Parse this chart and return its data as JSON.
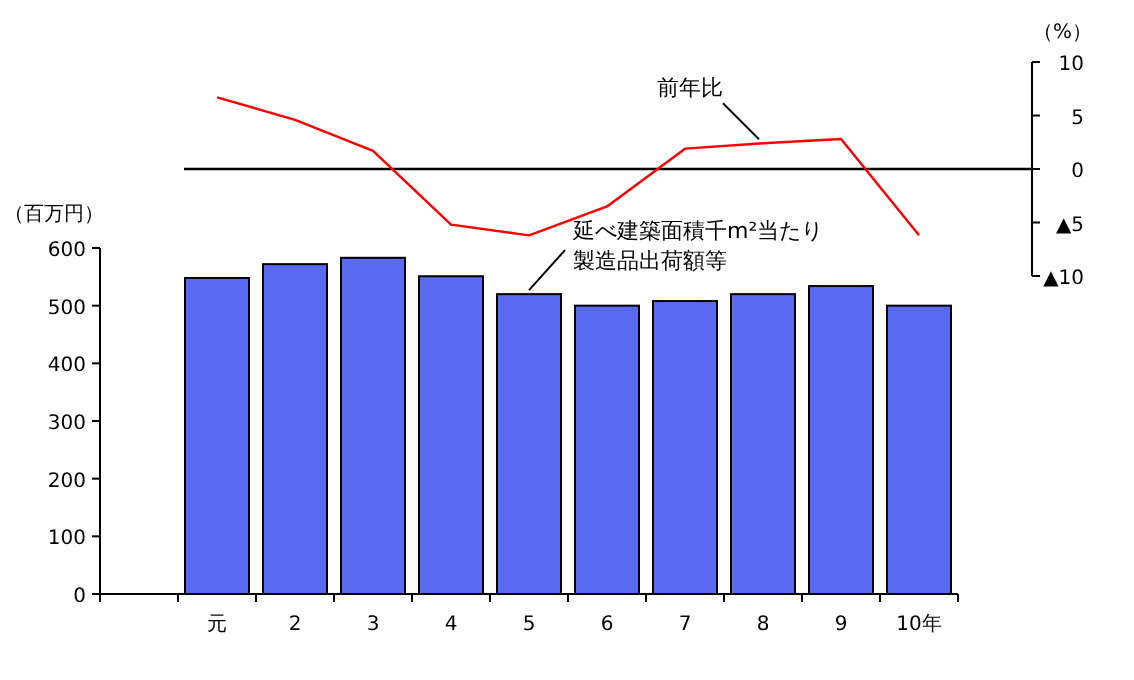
{
  "chart_data": [
    {
      "type": "line",
      "ylabel": "（%）",
      "categories": [
        null,
        null,
        null,
        null,
        null,
        null,
        null,
        null,
        null,
        null,
        null
      ],
      "tick_labels": "y",
      "ylim": [
        -10,
        10
      ],
      "yticks": [
        {
          "value": -10,
          "label": "▲10"
        },
        {
          "value": -5,
          "label": "▲5"
        },
        0,
        5,
        10
      ],
      "ref_lines": [
        {
          "axis": "y",
          "value": 0,
          "color": "#000000"
        }
      ],
      "series": [
        {
          "name": "前年比",
          "color": "#ff0000",
          "marker": "none",
          "line_style": "solid",
          "values": [
            null,
            6.7,
            4.6,
            1.7,
            -5.2,
            -6.2,
            -3.5,
            1.9,
            2.4,
            2.8,
            -6.2
          ]
        }
      ]
    },
    {
      "type": "bar",
      "ylabel": "（百万円）",
      "categories": [
        null,
        "元",
        "2",
        "3",
        "4",
        "5",
        "6",
        "7",
        "8",
        "9",
        "10年"
      ],
      "ylim": [
        0,
        600
      ],
      "yticks": [
        0,
        100,
        200,
        300,
        400,
        500,
        600
      ],
      "series": [
        {
          "name": "延べ建築面積千m²当たり製造品出荷額等",
          "color": "#5a6af0",
          "values": [
            null,
            548,
            572,
            583,
            551,
            520,
            500,
            508,
            520,
            534,
            500
          ]
        }
      ]
    }
  ]
}
